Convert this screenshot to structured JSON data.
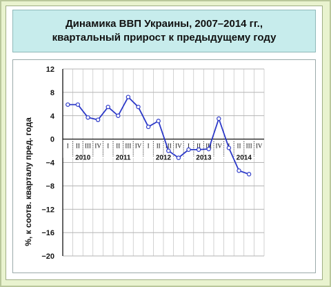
{
  "title_lines": [
    "Динамика ВВП Украины, 2007–2014 гг.,",
    "квартальный прирост к предыдущему году"
  ],
  "colors": {
    "line": "#2b38c8",
    "marker_fill": "#ffffff"
  },
  "chart_data": {
    "type": "line",
    "title": "Динамика ВВП Украины, 2007–2014 гг., квартальный прирост к предыдущему году",
    "ylabel": "%, к соотв. кварталу пред. года",
    "xlabel": "",
    "ylim": [
      -20,
      12
    ],
    "yticks": [
      12,
      8,
      4,
      0,
      -4,
      -8,
      -12,
      -16,
      -20
    ],
    "ytick_labels": [
      "12",
      "8",
      "4",
      "0",
      "−4",
      "−8",
      "−12",
      "−16",
      "−20"
    ],
    "grid": true,
    "quarter_labels": [
      "I",
      "II",
      "III",
      "IV"
    ],
    "years": [
      {
        "label": "2010",
        "quarters": [
          "I",
          "II",
          "III",
          "IV"
        ]
      },
      {
        "label": "2011",
        "quarters": [
          "I",
          "II",
          "III",
          "IV"
        ]
      },
      {
        "label": "2012",
        "quarters": [
          "I",
          "II",
          "III",
          "IV"
        ]
      },
      {
        "label": "2013",
        "quarters": [
          "I",
          "II",
          "III",
          "IV"
        ]
      },
      {
        "label": "2014",
        "quarters": [
          "I",
          "II",
          "III",
          "IV"
        ]
      }
    ],
    "series": [
      {
        "x": [
          "2010 I",
          "2010 II",
          "2010 III",
          "2010 IV",
          "2011 I",
          "2011 II",
          "2011 III",
          "2011 IV",
          "2012 I",
          "2012 II",
          "2012 III",
          "2012 IV",
          "2013 I",
          "2013 II",
          "2013 III",
          "2013 IV",
          "2014 I",
          "2014 II",
          "2014 III"
        ],
        "values": [
          5.9,
          5.9,
          3.7,
          3.3,
          5.5,
          4.0,
          7.2,
          5.5,
          2.1,
          3.1,
          -2.0,
          -3.2,
          -1.8,
          -1.8,
          -1.7,
          3.5,
          -1.5,
          -5.4,
          -6.0
        ]
      }
    ]
  }
}
